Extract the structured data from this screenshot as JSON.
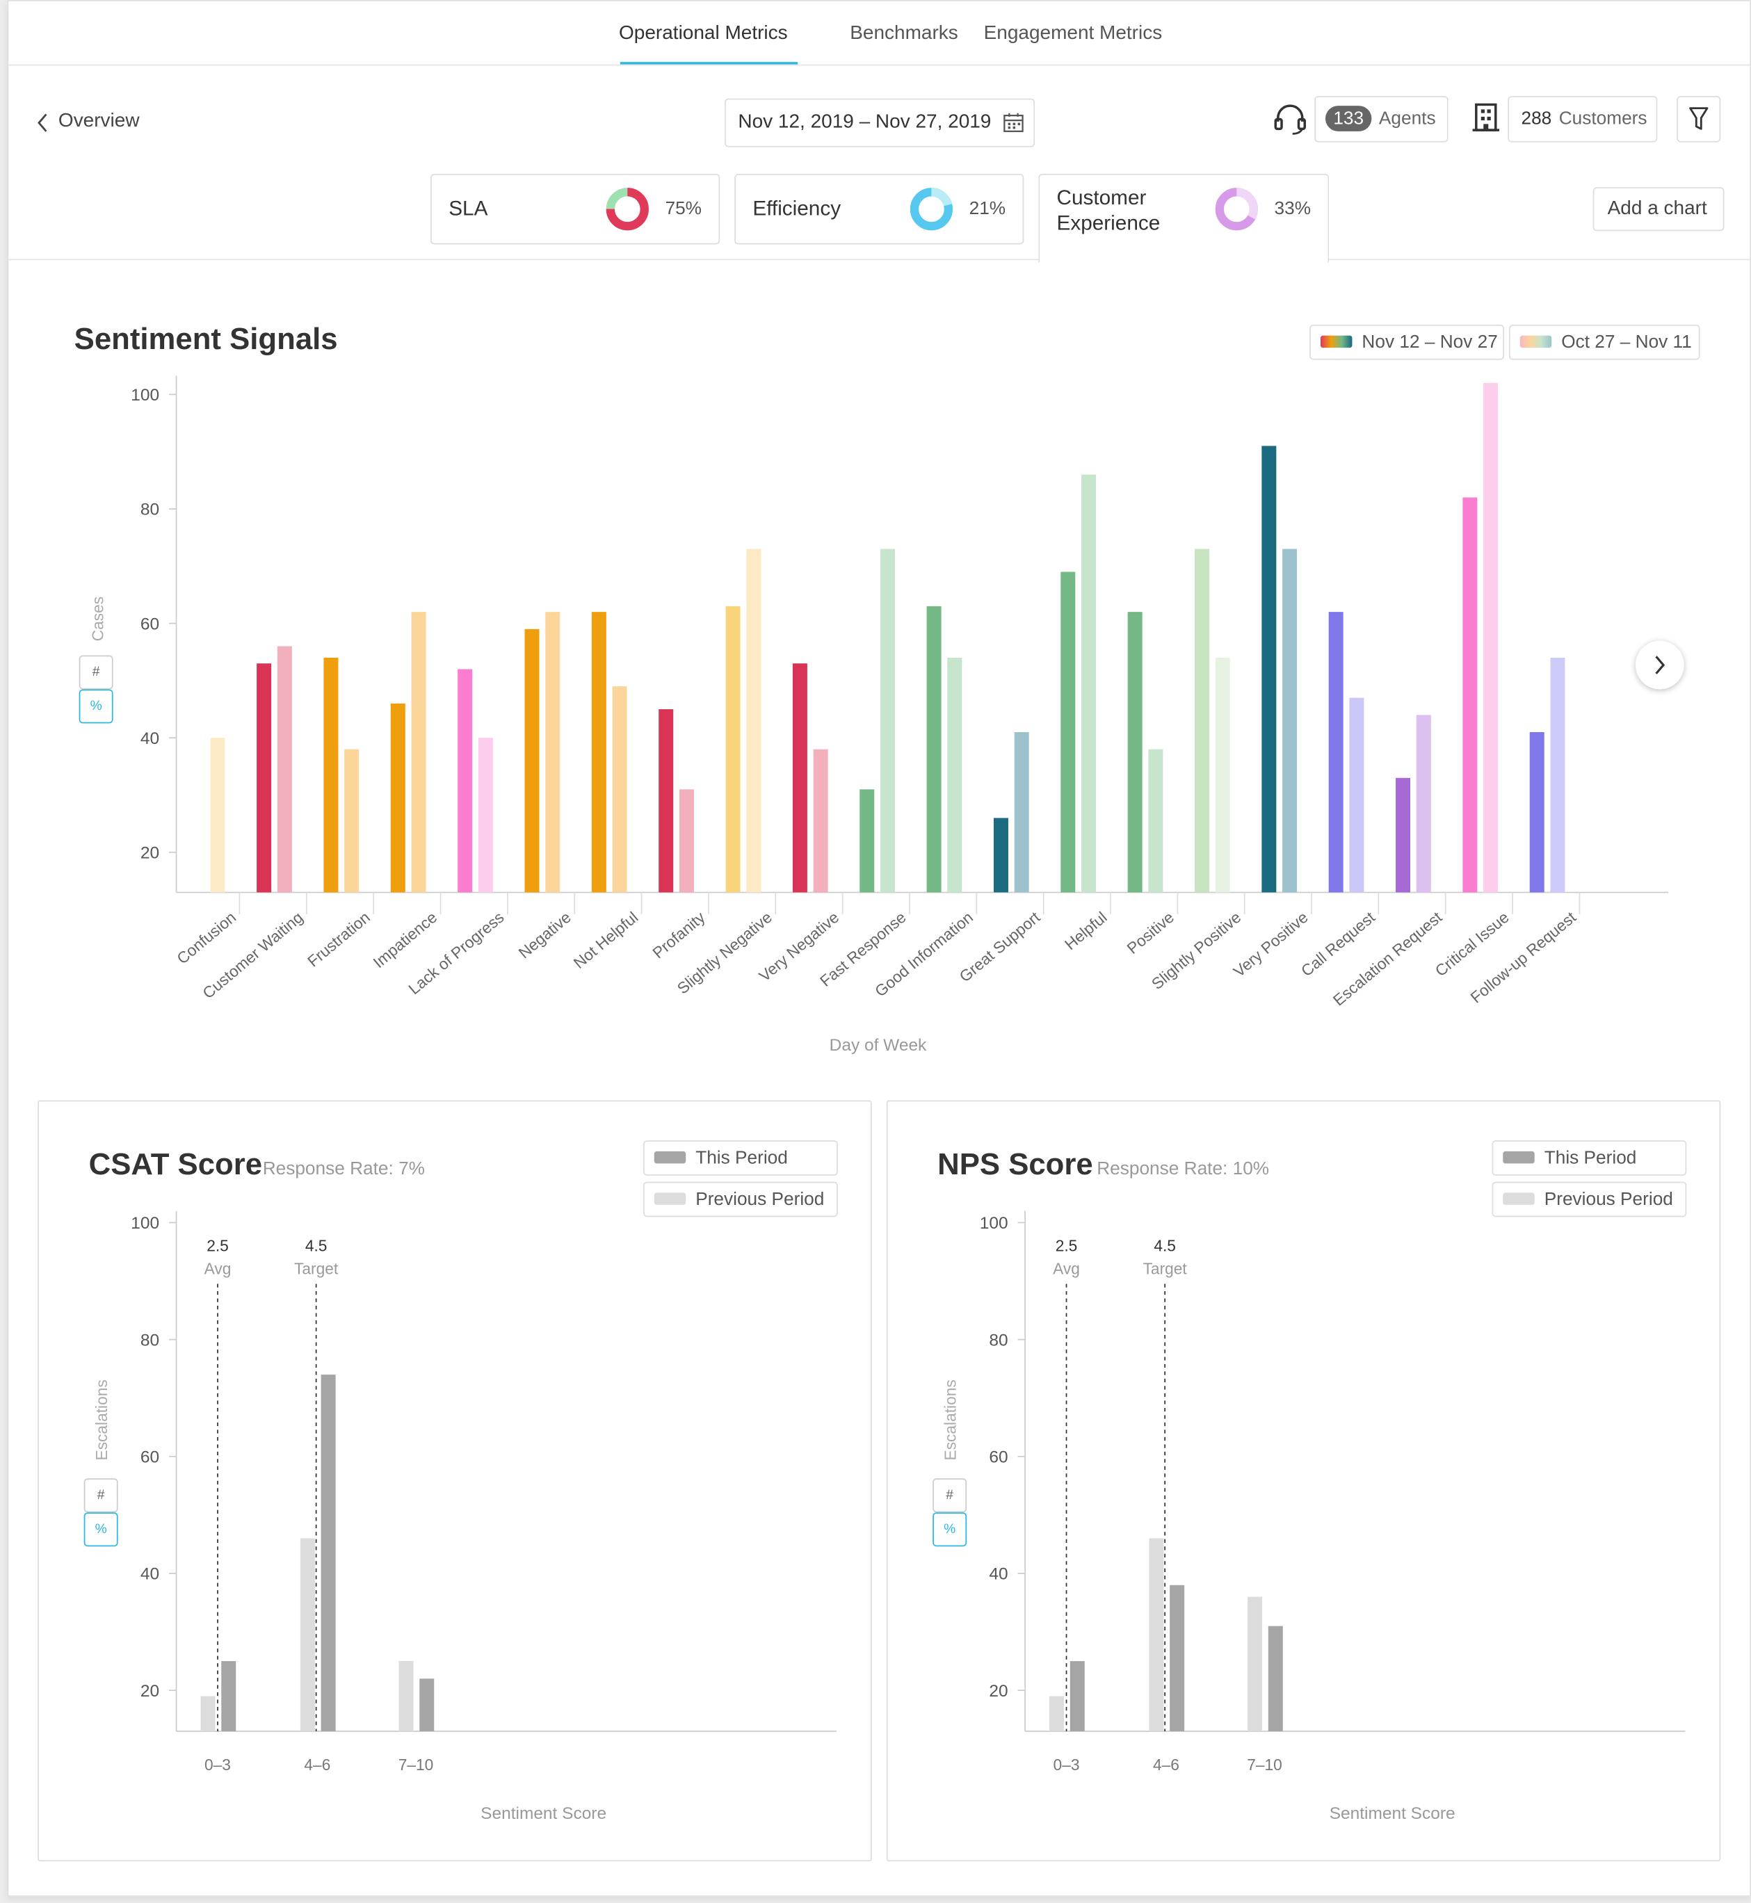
{
  "tabs": [
    {
      "label": "Operational Metrics",
      "active": true
    },
    {
      "label": "Benchmarks",
      "active": false
    },
    {
      "label": "Engagement Metrics",
      "active": false
    }
  ],
  "header": {
    "back_label": "Overview",
    "date_range": "Nov 12, 2019 – Nov 27, 2019",
    "agents_count": "133",
    "agents_label": "Agents",
    "customers_count": "288",
    "customers_label": "Customers",
    "icons": {
      "back": "chevron-left-icon",
      "calendar": "calendar-icon",
      "agents": "headset-icon",
      "customers": "building-icon",
      "filter": "funnel-icon"
    }
  },
  "kpis": [
    {
      "label": "SLA",
      "value": "75%",
      "fraction": 0.75,
      "colors": [
        "#e0395a",
        "#9fe0b0"
      ]
    },
    {
      "label": "Efficiency",
      "value": "21%",
      "fraction": 0.21,
      "colors": [
        "#b9ecf7",
        "#56c8f0"
      ]
    },
    {
      "label": "Customer Experience",
      "value": "33%",
      "fraction": 0.33,
      "colors": [
        "#f1d7f7",
        "#d79ae8"
      ]
    }
  ],
  "add_chart_label": "Add a chart",
  "toggles": {
    "count": "#",
    "percent": "%"
  },
  "sentiment": {
    "title": "Sentiment Signals",
    "legend": [
      "Nov 12 – Nov 27",
      "Oct 27 – Nov 11"
    ],
    "chart_data": {
      "type": "bar",
      "title": "Sentiment Signals",
      "xlabel": "Day of Week",
      "ylabel": "Cases",
      "ylim": [
        13,
        102
      ],
      "yticks": [
        20,
        40,
        60,
        80,
        100
      ],
      "categories": [
        "Confusion",
        "Customer Waiting",
        "Frustration",
        "Impatience",
        "Lack of Progress",
        "Negative",
        "Not Helpful",
        "Profanity",
        "Slightly Negative",
        "Very Negative",
        "Fast Response",
        "Good Information",
        "Great Support",
        "Helpful",
        "Positive",
        "Slightly Positive",
        "Very Positive",
        "Call Request",
        "Escalation Request",
        "Critical Issue",
        "Follow-up Request"
      ],
      "series": [
        {
          "name": "Nov 12 – Nov 27",
          "values": [
            null,
            53,
            54,
            46,
            52,
            59,
            62,
            45,
            63,
            53,
            31,
            63,
            26,
            69,
            62,
            73,
            91,
            62,
            33,
            82,
            41
          ]
        },
        {
          "name": "Oct 27 – Nov 11",
          "values": [
            40,
            56,
            38,
            62,
            40,
            62,
            49,
            31,
            73,
            38,
            73,
            54,
            41,
            86,
            38,
            54,
            73,
            47,
            44,
            102,
            54
          ]
        }
      ],
      "colors_current": [
        "#f4d6a0",
        "#d93456",
        "#ef9f0e",
        "#ef9f0e",
        "#fb7dd0",
        "#ef9f0e",
        "#ef9f0e",
        "#d93456",
        "#fad37d",
        "#d93456",
        "#74b985",
        "#74b985",
        "#1a6a80",
        "#74b985",
        "#74b985",
        "#c7e3c0",
        "#1a6a80",
        "#7f78ea",
        "#a769d6",
        "#fb7dd0",
        "#7f78ea"
      ],
      "colors_previous": [
        "#fdebc7",
        "#f1b0bc",
        "#fcd59a",
        "#fcd59a",
        "#fdcdf0",
        "#fcd59a",
        "#fcd59a",
        "#f1b0bc",
        "#fde9c3",
        "#f1b0bc",
        "#c7e4cc",
        "#c7e4cc",
        "#9dc2cd",
        "#c7e4cc",
        "#c7e4cc",
        "#e6f3e2",
        "#9dc2cd",
        "#cbc7f7",
        "#dcc1f0",
        "#fdcdec",
        "#cfcbf8"
      ]
    }
  },
  "csat": {
    "title": "CSAT Score",
    "subtitle": "Response Rate: 7%",
    "legend": [
      "This Period",
      "Previous Period"
    ],
    "markers": [
      {
        "value": "2.5",
        "label": "Avg"
      },
      {
        "value": "4.5",
        "label": "Target"
      }
    ],
    "chart_data": {
      "type": "bar",
      "title": "CSAT Score",
      "xlabel": "Sentiment Score",
      "ylabel": "Escalations",
      "ylim": [
        13,
        102
      ],
      "yticks": [
        20,
        40,
        60,
        80,
        100
      ],
      "categories": [
        "0–3",
        "4–6",
        "7–10"
      ],
      "series": [
        {
          "name": "Previous Period",
          "values": [
            19,
            46,
            25
          ]
        },
        {
          "name": "This Period",
          "values": [
            25,
            74,
            22
          ]
        }
      ]
    }
  },
  "nps": {
    "title": "NPS Score",
    "subtitle": "Response Rate: 10%",
    "legend": [
      "This Period",
      "Previous Period"
    ],
    "markers": [
      {
        "value": "2.5",
        "label": "Avg"
      },
      {
        "value": "4.5",
        "label": "Target"
      }
    ],
    "chart_data": {
      "type": "bar",
      "title": "NPS Score",
      "xlabel": "Sentiment Score",
      "ylabel": "Escalations",
      "ylim": [
        13,
        102
      ],
      "yticks": [
        20,
        40,
        60,
        80,
        100
      ],
      "categories": [
        "0–3",
        "4–6",
        "7–10"
      ],
      "series": [
        {
          "name": "Previous Period",
          "values": [
            19,
            46,
            36
          ]
        },
        {
          "name": "This Period",
          "values": [
            25,
            38,
            31
          ]
        }
      ]
    }
  },
  "colors": {
    "accent": "#2bb8e0",
    "this_period": "#a5a5a5",
    "previous_period": "#dcdcdc"
  }
}
